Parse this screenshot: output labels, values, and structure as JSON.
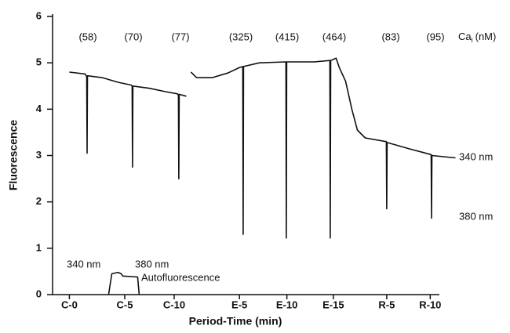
{
  "chart_data": {
    "type": "line",
    "y_label": "Fluorescence",
    "x_label": "Period-Time (min)",
    "ylim": [
      0,
      6
    ],
    "yticks": [
      0,
      1,
      2,
      3,
      4,
      5,
      6
    ],
    "xlim": [
      -1.7,
      40.6
    ],
    "xticks": [
      {
        "value": 0,
        "label": "C-0"
      },
      {
        "value": 5.6,
        "label": "C-5"
      },
      {
        "value": 10.6,
        "label": "C-10"
      },
      {
        "value": 17.2,
        "label": "E-5"
      },
      {
        "value": 22,
        "label": "E-10"
      },
      {
        "value": 26.7,
        "label": "E-15"
      },
      {
        "value": 32.1,
        "label": "R-5"
      },
      {
        "value": 36.5,
        "label": "R-10"
      }
    ],
    "series": [
      {
        "color": "#111111",
        "x": [
          0,
          1.59,
          1.75,
          1.79,
          1.83,
          3.33,
          4.92,
          6.27,
          6.35,
          6.39,
          6.43,
          8.1,
          9.68,
          10.95,
          11.03,
          11.07,
          11.11,
          11.83,
          null,
          12.3,
          12.86,
          14.44,
          16.03,
          17.22,
          17.54,
          17.58,
          17.62,
          19.21,
          21.9,
          21.94,
          21.98,
          24.76,
          26.35,
          26.39,
          26.43,
          26.98,
          27.3,
          27.94,
          28.57,
          29.13,
          29.92,
          32.06,
          32.1,
          32.14,
          34.29,
          36.59,
          36.63,
          36.67,
          39.05
        ],
        "values": [
          4.8,
          4.76,
          4.7,
          3.05,
          4.72,
          4.68,
          4.58,
          4.52,
          4.5,
          2.75,
          4.5,
          4.45,
          4.38,
          4.33,
          4.3,
          2.5,
          4.32,
          4.28,
          null,
          4.8,
          4.68,
          4.68,
          4.78,
          4.9,
          4.92,
          1.3,
          4.92,
          5.0,
          5.02,
          1.22,
          5.02,
          5.02,
          5.05,
          1.22,
          5.05,
          5.1,
          4.9,
          4.6,
          4.0,
          3.55,
          3.38,
          3.3,
          1.85,
          3.28,
          3.15,
          3.02,
          1.65,
          3.0,
          2.95
        ]
      },
      {
        "color": "#111111",
        "x": [
          3.97,
          4.29,
          4.92,
          5.24,
          5.4,
          6.9,
          7.06
        ],
        "values": [
          0,
          0.45,
          0.48,
          0.45,
          0.4,
          0.38,
          0
        ]
      }
    ],
    "ca_values": [
      "(58)",
      "(70)",
      "(77)",
      "(325)",
      "(415)",
      "(464)",
      "(83)",
      "(95)"
    ],
    "ca_label": {
      "main": "Ca",
      "sub": "i",
      "unit": "(nM)"
    },
    "right_labels": [
      "340 nm",
      "380 nm"
    ],
    "inset_labels": [
      "340 nm",
      "380 nm",
      "Autofluorescence"
    ]
  }
}
